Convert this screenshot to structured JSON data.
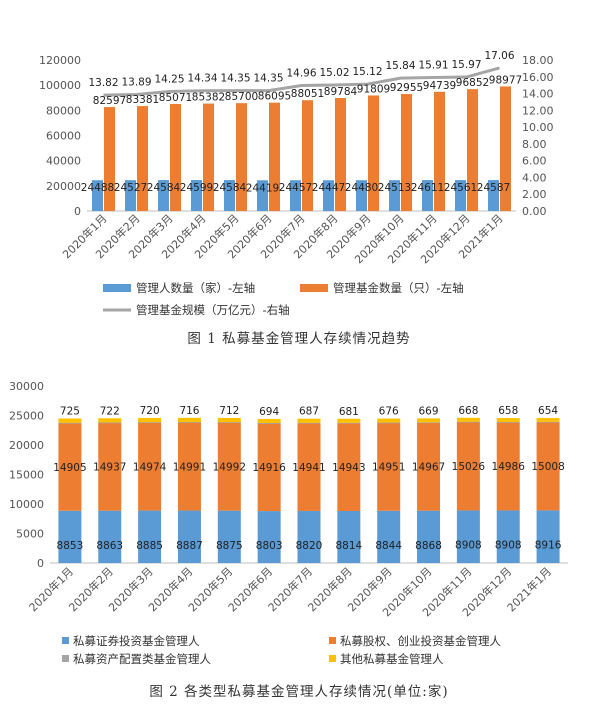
{
  "charts": [
    {
      "caption": "图 1  私募基金管理人存续情况趋势",
      "categories": [
        "2020年1月",
        "2020年2月",
        "2020年3月",
        "2020年4月",
        "2020年5月",
        "2020年6月",
        "2020年7月",
        "2020年8月",
        "2020年9月",
        "2020年10月",
        "2020年11月",
        "2020年12月",
        "2021年1月"
      ],
      "left_axis_ticks": [
        "0",
        "20000",
        "40000",
        "60000",
        "80000",
        "100000",
        "120000"
      ],
      "right_axis_ticks": [
        "0.00",
        "2.00",
        "4.00",
        "6.00",
        "8.00",
        "10.00",
        "12.00",
        "14.00",
        "16.00",
        "18.00"
      ],
      "legend": [
        "管理人数量（家）-左轴",
        "管理基金数量（只）-左轴",
        "管理基金规模（万亿元）-右轴"
      ]
    },
    {
      "caption": "图 2  各类型私募基金管理人存续情况(单位:家)",
      "categories": [
        "2020年1月",
        "2020年2月",
        "2020年3月",
        "2020年4月",
        "2020年5月",
        "2020年6月",
        "2020年7月",
        "2020年8月",
        "2020年9月",
        "2020年10月",
        "2020年11月",
        "2020年12月",
        "2021年1月"
      ],
      "y_axis_ticks": [
        "0",
        "5000",
        "10000",
        "15000",
        "20000",
        "25000",
        "30000"
      ],
      "legend": [
        "私募证券投资基金管理人",
        "私募股权、创业投资基金管理人",
        "私募资产配置类基金管理人",
        "其他私募基金管理人"
      ]
    }
  ],
  "chart_data": [
    {
      "type": "bar",
      "categories": [
        "2020年1月",
        "2020年2月",
        "2020年3月",
        "2020年4月",
        "2020年5月",
        "2020年6月",
        "2020年7月",
        "2020年8月",
        "2020年9月",
        "2020年10月",
        "2020年11月",
        "2020年12月",
        "2021年1月"
      ],
      "ylim": [
        0,
        120000
      ],
      "y2lim": [
        0,
        18
      ],
      "grid": false,
      "legend_position": "bottom",
      "series": [
        {
          "name": "管理人数量（家）-左轴",
          "type": "bar",
          "axis": "left",
          "color": "#5B9BD5",
          "values": [
            24488,
            24527,
            24584,
            24599,
            24584,
            24419,
            24457,
            24447,
            24480,
            24513,
            24611,
            24561,
            24587
          ]
        },
        {
          "name": "管理基金数量（只）-左轴",
          "type": "bar",
          "axis": "left",
          "color": "#ED7D31",
          "values": [
            82597,
            83381,
            85071,
            85382,
            85700,
            86095,
            88051,
            89784,
            91809,
            92955,
            94739,
            96852,
            98977
          ]
        },
        {
          "name": "管理基金规模（万亿元）-右轴",
          "type": "line",
          "axis": "right",
          "color": "#A5A5A5",
          "values": [
            13.82,
            13.89,
            14.25,
            14.34,
            14.35,
            14.35,
            14.96,
            15.02,
            15.12,
            15.84,
            15.91,
            15.97,
            17.06
          ]
        }
      ]
    },
    {
      "type": "bar",
      "stacked": true,
      "categories": [
        "2020年1月",
        "2020年2月",
        "2020年3月",
        "2020年4月",
        "2020年5月",
        "2020年6月",
        "2020年7月",
        "2020年8月",
        "2020年9月",
        "2020年10月",
        "2020年11月",
        "2020年12月",
        "2021年1月"
      ],
      "ylim": [
        0,
        30000
      ],
      "grid": false,
      "legend_position": "bottom",
      "series": [
        {
          "name": "私募证券投资基金管理人",
          "color": "#5B9BD5",
          "labeled": true,
          "values": [
            8853,
            8863,
            8885,
            8887,
            8875,
            8803,
            8820,
            8814,
            8844,
            8868,
            8908,
            8908,
            8916
          ]
        },
        {
          "name": "私募股权、创业投资基金管理人",
          "color": "#ED7D31",
          "labeled": true,
          "values": [
            14905,
            14937,
            14974,
            14991,
            14992,
            14916,
            14941,
            14943,
            14951,
            14967,
            15026,
            14986,
            15008
          ]
        },
        {
          "name": "私募资产配置类基金管理人",
          "color": "#A5A5A5",
          "labeled": false,
          "values": [
            10,
            10,
            10,
            10,
            10,
            10,
            10,
            10,
            10,
            10,
            10,
            10,
            10
          ]
        },
        {
          "name": "其他私募基金管理人",
          "color": "#FFC000",
          "labeled": true,
          "values": [
            725,
            722,
            720,
            716,
            712,
            694,
            687,
            681,
            676,
            669,
            668,
            658,
            654
          ]
        }
      ]
    }
  ]
}
